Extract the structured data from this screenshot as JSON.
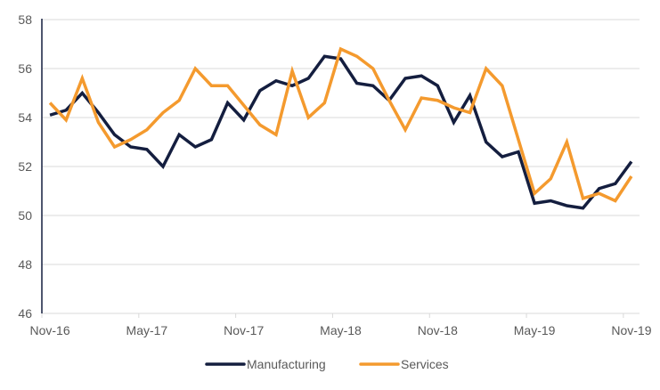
{
  "chart_data": {
    "type": "line",
    "title": "",
    "xlabel": "",
    "ylabel": "",
    "ylim": [
      46,
      58
    ],
    "yticks": [
      46,
      48,
      50,
      52,
      54,
      56,
      58
    ],
    "grid": "horizontal",
    "legend_position": "bottom",
    "x": [
      "Nov-16",
      "Dec-16",
      "Jan-17",
      "Feb-17",
      "Mar-17",
      "Apr-17",
      "May-17",
      "Jun-17",
      "Jul-17",
      "Aug-17",
      "Sep-17",
      "Oct-17",
      "Nov-17",
      "Dec-17",
      "Jan-18",
      "Feb-18",
      "Mar-18",
      "Apr-18",
      "May-18",
      "Jun-18",
      "Jul-18",
      "Aug-18",
      "Sep-18",
      "Oct-18",
      "Nov-18",
      "Dec-18",
      "Jan-19",
      "Feb-19",
      "Mar-19",
      "Apr-19",
      "May-19",
      "Jun-19",
      "Jul-19",
      "Aug-19",
      "Sep-19",
      "Oct-19",
      "Nov-19"
    ],
    "xtick_labels": [
      "Nov-16",
      "May-17",
      "Nov-17",
      "May-18",
      "Nov-18",
      "May-19",
      "Nov-19"
    ],
    "series": [
      {
        "name": "Manufacturing",
        "color": "#141E3F",
        "values": [
          54.1,
          54.3,
          55.0,
          54.2,
          53.3,
          52.8,
          52.7,
          52.0,
          53.3,
          52.8,
          53.1,
          54.6,
          53.9,
          55.1,
          55.5,
          55.3,
          55.6,
          56.5,
          56.4,
          55.4,
          55.3,
          54.7,
          55.6,
          55.7,
          55.3,
          53.8,
          54.9,
          53.0,
          52.4,
          52.6,
          50.5,
          50.6,
          50.4,
          50.3,
          51.1,
          51.3,
          52.2
        ]
      },
      {
        "name": "Services",
        "color": "#F49A2E",
        "values": [
          54.6,
          53.9,
          55.6,
          53.8,
          52.8,
          53.1,
          53.5,
          54.2,
          54.7,
          56.0,
          55.3,
          55.3,
          54.5,
          53.7,
          53.3,
          55.9,
          54.0,
          54.6,
          56.8,
          56.5,
          56.0,
          54.7,
          53.5,
          54.8,
          54.7,
          54.4,
          54.2,
          56.0,
          55.3,
          53.1,
          50.9,
          51.5,
          53.0,
          50.7,
          50.9,
          50.6,
          51.6
        ]
      }
    ]
  },
  "colors": {
    "axis_line": "#141E3F",
    "gridline": "#D9D9D9",
    "tick_text": "#595959"
  }
}
